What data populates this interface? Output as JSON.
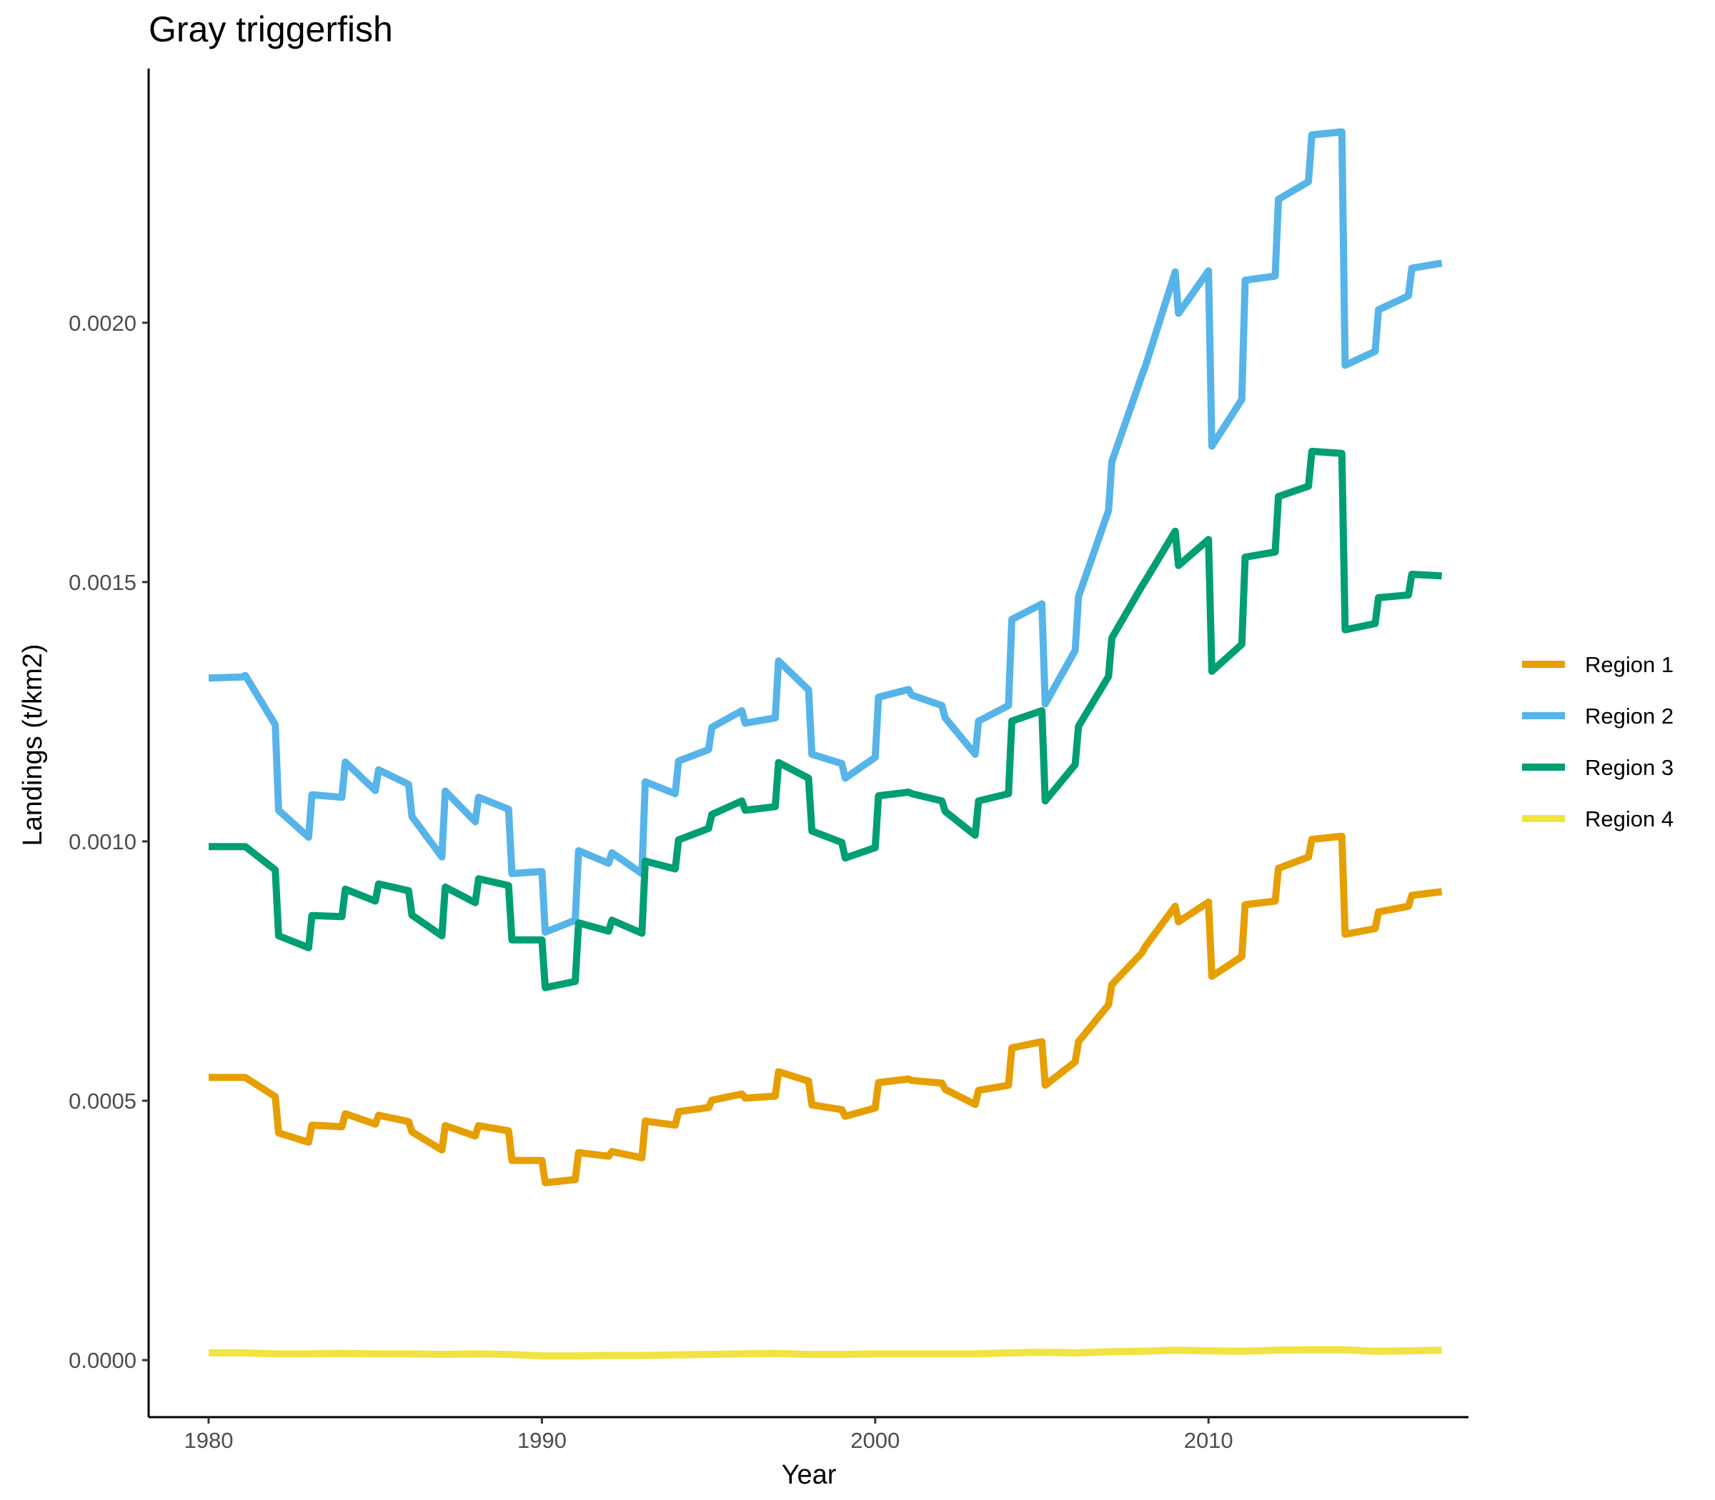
{
  "chart_data": {
    "type": "line",
    "title": "Gray triggerfish",
    "xlabel": "Year",
    "ylabel": "Landings (t/km2)",
    "xlim": [
      1978.2,
      2017.8
    ],
    "ylim": [
      -0.00011,
      0.00249
    ],
    "x_ticks": [
      1980,
      1990,
      2000,
      2010
    ],
    "x_tick_labels": [
      "1980",
      "1990",
      "2000",
      "2010"
    ],
    "y_ticks": [
      0,
      0.0005,
      0.001,
      0.0015,
      0.002
    ],
    "y_tick_labels": [
      "0.0000",
      "0.0005",
      "0.0010",
      "0.0015",
      "0.0020"
    ],
    "grid": false,
    "legend_position": "right",
    "series": [
      {
        "name": "Region 1",
        "color": "#E69F00",
        "x": [
          1980.0,
          1981.0,
          1981.1,
          1982.0,
          1982.1,
          1983.0,
          1983.1,
          1984.0,
          1984.1,
          1985.0,
          1985.1,
          1986.0,
          1986.1,
          1987.0,
          1987.1,
          1988.0,
          1988.1,
          1989.0,
          1989.1,
          1990.0,
          1990.1,
          1991.0,
          1991.1,
          1992.0,
          1992.1,
          1993.0,
          1993.1,
          1994.0,
          1994.1,
          1995.0,
          1995.1,
          1996.0,
          1996.1,
          1997.0,
          1997.1,
          1998.0,
          1998.1,
          1999.0,
          1999.1,
          2000.0,
          2000.1,
          2001.0,
          2001.1,
          2002.0,
          2002.1,
          2003.0,
          2003.1,
          2004.0,
          2004.1,
          2005.0,
          2005.1,
          2006.0,
          2006.1,
          2007.0,
          2007.1,
          2008.0,
          2008.1,
          2009.0,
          2009.1,
          2010.0,
          2010.1,
          2011.0,
          2011.1,
          2012.0,
          2012.1,
          2013.0,
          2013.1,
          2014.0,
          2014.1,
          2015.0,
          2015.1,
          2016.0,
          2016.1,
          2017.0
        ],
        "values": [
          0.000545,
          0.000545,
          0.000545,
          0.000508,
          0.000438,
          0.00042,
          0.000453,
          0.00045,
          0.000475,
          0.000455,
          0.000472,
          0.00046,
          0.00044,
          0.000405,
          0.000452,
          0.000432,
          0.000452,
          0.000442,
          0.000385,
          0.000385,
          0.000342,
          0.000348,
          0.0004,
          0.000393,
          0.000402,
          0.00039,
          0.000461,
          0.000453,
          0.000479,
          0.000487,
          0.000501,
          0.000513,
          0.000505,
          0.000509,
          0.000556,
          0.000538,
          0.000492,
          0.000483,
          0.00047,
          0.000486,
          0.000535,
          0.000542,
          0.000539,
          0.000534,
          0.000522,
          0.000493,
          0.00052,
          0.00053,
          0.000602,
          0.000614,
          0.00053,
          0.000575,
          0.000614,
          0.000685,
          0.000724,
          0.000785,
          0.000797,
          0.000875,
          0.000845,
          0.000883,
          0.00074,
          0.000778,
          0.000878,
          0.000885,
          0.000948,
          0.00097,
          0.001004,
          0.00101,
          0.000821,
          0.000832,
          0.000864,
          0.000875,
          0.000896,
          0.000903
        ]
      },
      {
        "name": "Region 2",
        "color": "#56B4E9",
        "x": [
          1980.0,
          1981.0,
          1981.1,
          1982.0,
          1982.1,
          1983.0,
          1983.1,
          1984.0,
          1984.1,
          1985.0,
          1985.1,
          1986.0,
          1986.1,
          1987.0,
          1987.1,
          1988.0,
          1988.1,
          1989.0,
          1989.1,
          1990.0,
          1990.1,
          1991.0,
          1991.1,
          1992.0,
          1992.1,
          1993.0,
          1993.1,
          1994.0,
          1994.1,
          1995.0,
          1995.1,
          1996.0,
          1996.1,
          1997.0,
          1997.1,
          1998.0,
          1998.1,
          1999.0,
          1999.1,
          2000.0,
          2000.1,
          2001.0,
          2001.1,
          2002.0,
          2002.1,
          2003.0,
          2003.1,
          2004.0,
          2004.1,
          2005.0,
          2005.1,
          2006.0,
          2006.1,
          2007.0,
          2007.1,
          2008.0,
          2008.1,
          2009.0,
          2009.1,
          2010.0,
          2010.1,
          2011.0,
          2011.1,
          2012.0,
          2012.1,
          2013.0,
          2013.1,
          2014.0,
          2014.1,
          2015.0,
          2015.1,
          2016.0,
          2016.1,
          2017.0
        ],
        "values": [
          0.001315,
          0.001317,
          0.00132,
          0.001225,
          0.00106,
          0.001008,
          0.00109,
          0.001085,
          0.001153,
          0.001098,
          0.001138,
          0.00111,
          0.001048,
          0.00097,
          0.001097,
          0.001038,
          0.001085,
          0.001062,
          0.000938,
          0.000942,
          0.000825,
          0.000848,
          0.000982,
          0.000958,
          0.000978,
          0.000938,
          0.001115,
          0.001092,
          0.001155,
          0.001177,
          0.00122,
          0.001252,
          0.001228,
          0.001238,
          0.001348,
          0.001292,
          0.001168,
          0.00115,
          0.001122,
          0.001162,
          0.001278,
          0.001293,
          0.001282,
          0.001262,
          0.001238,
          0.001168,
          0.001232,
          0.001262,
          0.001428,
          0.001458,
          0.001265,
          0.001368,
          0.001472,
          0.001638,
          0.001732,
          0.001898,
          0.001915,
          0.002098,
          0.002018,
          0.0021,
          0.001762,
          0.001852,
          0.002082,
          0.00209,
          0.002238,
          0.002272,
          0.002362,
          0.002368,
          0.001918,
          0.001945,
          0.002025,
          0.002052,
          0.002105,
          0.002115
        ]
      },
      {
        "name": "Region 3",
        "color": "#009E73",
        "x": [
          1980.0,
          1981.0,
          1981.1,
          1982.0,
          1982.1,
          1983.0,
          1983.1,
          1984.0,
          1984.1,
          1985.0,
          1985.1,
          1986.0,
          1986.1,
          1987.0,
          1987.1,
          1988.0,
          1988.1,
          1989.0,
          1989.1,
          1990.0,
          1990.1,
          1991.0,
          1991.1,
          1992.0,
          1992.1,
          1993.0,
          1993.1,
          1994.0,
          1994.1,
          1995.0,
          1995.1,
          1996.0,
          1996.1,
          1997.0,
          1997.1,
          1998.0,
          1998.1,
          1999.0,
          1999.1,
          2000.0,
          2000.1,
          2001.0,
          2001.1,
          2002.0,
          2002.1,
          2003.0,
          2003.1,
          2004.0,
          2004.1,
          2005.0,
          2005.1,
          2006.0,
          2006.1,
          2007.0,
          2007.1,
          2008.0,
          2008.1,
          2009.0,
          2009.1,
          2010.0,
          2010.1,
          2011.0,
          2011.1,
          2012.0,
          2012.1,
          2013.0,
          2013.1,
          2014.0,
          2014.1,
          2015.0,
          2015.1,
          2016.0,
          2016.1,
          2017.0
        ],
        "values": [
          0.00099,
          0.00099,
          0.00099,
          0.000945,
          0.000818,
          0.000795,
          0.000857,
          0.000855,
          0.000908,
          0.000885,
          0.000918,
          0.000905,
          0.000858,
          0.000818,
          0.000912,
          0.000882,
          0.000928,
          0.000915,
          0.00081,
          0.00081,
          0.000718,
          0.00073,
          0.000843,
          0.000827,
          0.000848,
          0.000823,
          0.000962,
          0.000947,
          0.001003,
          0.001025,
          0.001052,
          0.001078,
          0.00106,
          0.001067,
          0.001152,
          0.001122,
          0.00102,
          0.000998,
          0.000968,
          0.000988,
          0.001088,
          0.001095,
          0.001092,
          0.001078,
          0.001058,
          0.001012,
          0.001078,
          0.001092,
          0.001232,
          0.001252,
          0.001078,
          0.001148,
          0.001222,
          0.001318,
          0.001392,
          0.001492,
          0.001502,
          0.001598,
          0.001532,
          0.001582,
          0.001328,
          0.00138,
          0.001548,
          0.001558,
          0.001665,
          0.001685,
          0.001752,
          0.001748,
          0.001408,
          0.00142,
          0.00147,
          0.001475,
          0.001515,
          0.001512
        ]
      },
      {
        "name": "Region 4",
        "color": "#F0E442",
        "x": [
          1980,
          1981,
          1982,
          1983,
          1984,
          1985,
          1986,
          1987,
          1988,
          1989,
          1990,
          1991,
          1992,
          1993,
          1994,
          1995,
          1996,
          1997,
          1998,
          1999,
          2000,
          2001,
          2002,
          2003,
          2004,
          2005,
          2006,
          2007,
          2008,
          2009,
          2010,
          2011,
          2012,
          2013,
          2014,
          2015,
          2016,
          2017
        ],
        "values": [
          1.4e-05,
          1.4e-05,
          1.2e-05,
          1.2e-05,
          1.3e-05,
          1.2e-05,
          1.2e-05,
          1.1e-05,
          1.2e-05,
          1.1e-05,
          8e-06,
          8e-06,
          9e-06,
          9e-06,
          1e-05,
          1.1e-05,
          1.2e-05,
          1.3e-05,
          1.1e-05,
          1.1e-05,
          1.2e-05,
          1.2e-05,
          1.2e-05,
          1.2e-05,
          1.4e-05,
          1.5e-05,
          1.4e-05,
          1.6e-05,
          1.7e-05,
          1.9e-05,
          1.8e-05,
          1.7e-05,
          1.9e-05,
          2e-05,
          2e-05,
          1.7e-05,
          1.8e-05,
          1.9e-05
        ]
      }
    ]
  }
}
